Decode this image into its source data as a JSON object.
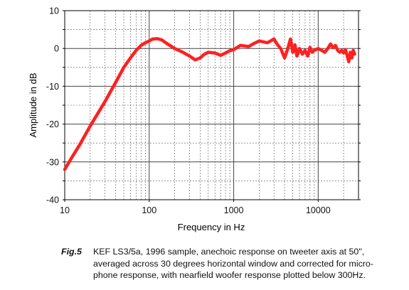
{
  "chart_data": {
    "type": "line",
    "xscale": "log",
    "xlim": [
      10,
      30000
    ],
    "ylim": [
      -40,
      10
    ],
    "xlabel": "Frequency in Hz",
    "ylabel": "Amplitude in dB",
    "x_tick_labels": [
      "10",
      "100",
      "1000",
      "10000"
    ],
    "y_tick_labels": [
      "10",
      "0",
      "-10",
      "-20",
      "-30",
      "-40"
    ],
    "grid": true,
    "line_color": "#ff2020",
    "series": [
      {
        "x": [
          10,
          12,
          15,
          20,
          30,
          40,
          50,
          60,
          70,
          80,
          90,
          100,
          110,
          125,
          140,
          160,
          200,
          250,
          300,
          350,
          400,
          450,
          500,
          600,
          700,
          800,
          900,
          1000,
          1200,
          1500,
          1700,
          2000,
          2500,
          3000,
          3300,
          3600,
          4000,
          4300,
          4700,
          5000,
          5300,
          5600,
          6000,
          6500,
          7000,
          7500,
          8000,
          8500,
          9000,
          10000,
          11000,
          12000,
          13000,
          14000,
          15000,
          16000,
          17000,
          18000,
          19000,
          20000,
          21000,
          22000,
          23000,
          24000,
          25000,
          26000,
          27000
        ],
        "y": [
          -32,
          -29,
          -25.5,
          -20.5,
          -14,
          -9,
          -5,
          -2.5,
          -0.5,
          0.8,
          1.5,
          2,
          2.5,
          2.6,
          2.3,
          1.4,
          0,
          -1,
          -2,
          -3,
          -2.5,
          -1.5,
          -1,
          -1.2,
          -1.8,
          -1.2,
          -0.6,
          -0.3,
          0.8,
          0.5,
          1.2,
          2,
          1.5,
          2.5,
          1,
          0,
          -2.5,
          -0.5,
          2.5,
          -1,
          1,
          -2,
          0,
          -1.5,
          -0.5,
          -2,
          0.3,
          -1,
          -0.5,
          0,
          -0.5,
          -1,
          0,
          1.2,
          0.2,
          0.8,
          -0.5,
          -1,
          -0.5,
          -1.2,
          -0.3,
          -1.8,
          -3.5,
          -1,
          -2.5,
          -0.5,
          -1.5
        ]
      }
    ]
  },
  "caption": {
    "label": "Fig.5",
    "lines": [
      "KEF LS3/5a, 1996 sample, anechoic response on tweeter axis at 50\",",
      "averaged across 30 degrees horizontal window and corrected for micro-",
      "phone response, with nearfield woofer response plotted below 300Hz."
    ]
  }
}
